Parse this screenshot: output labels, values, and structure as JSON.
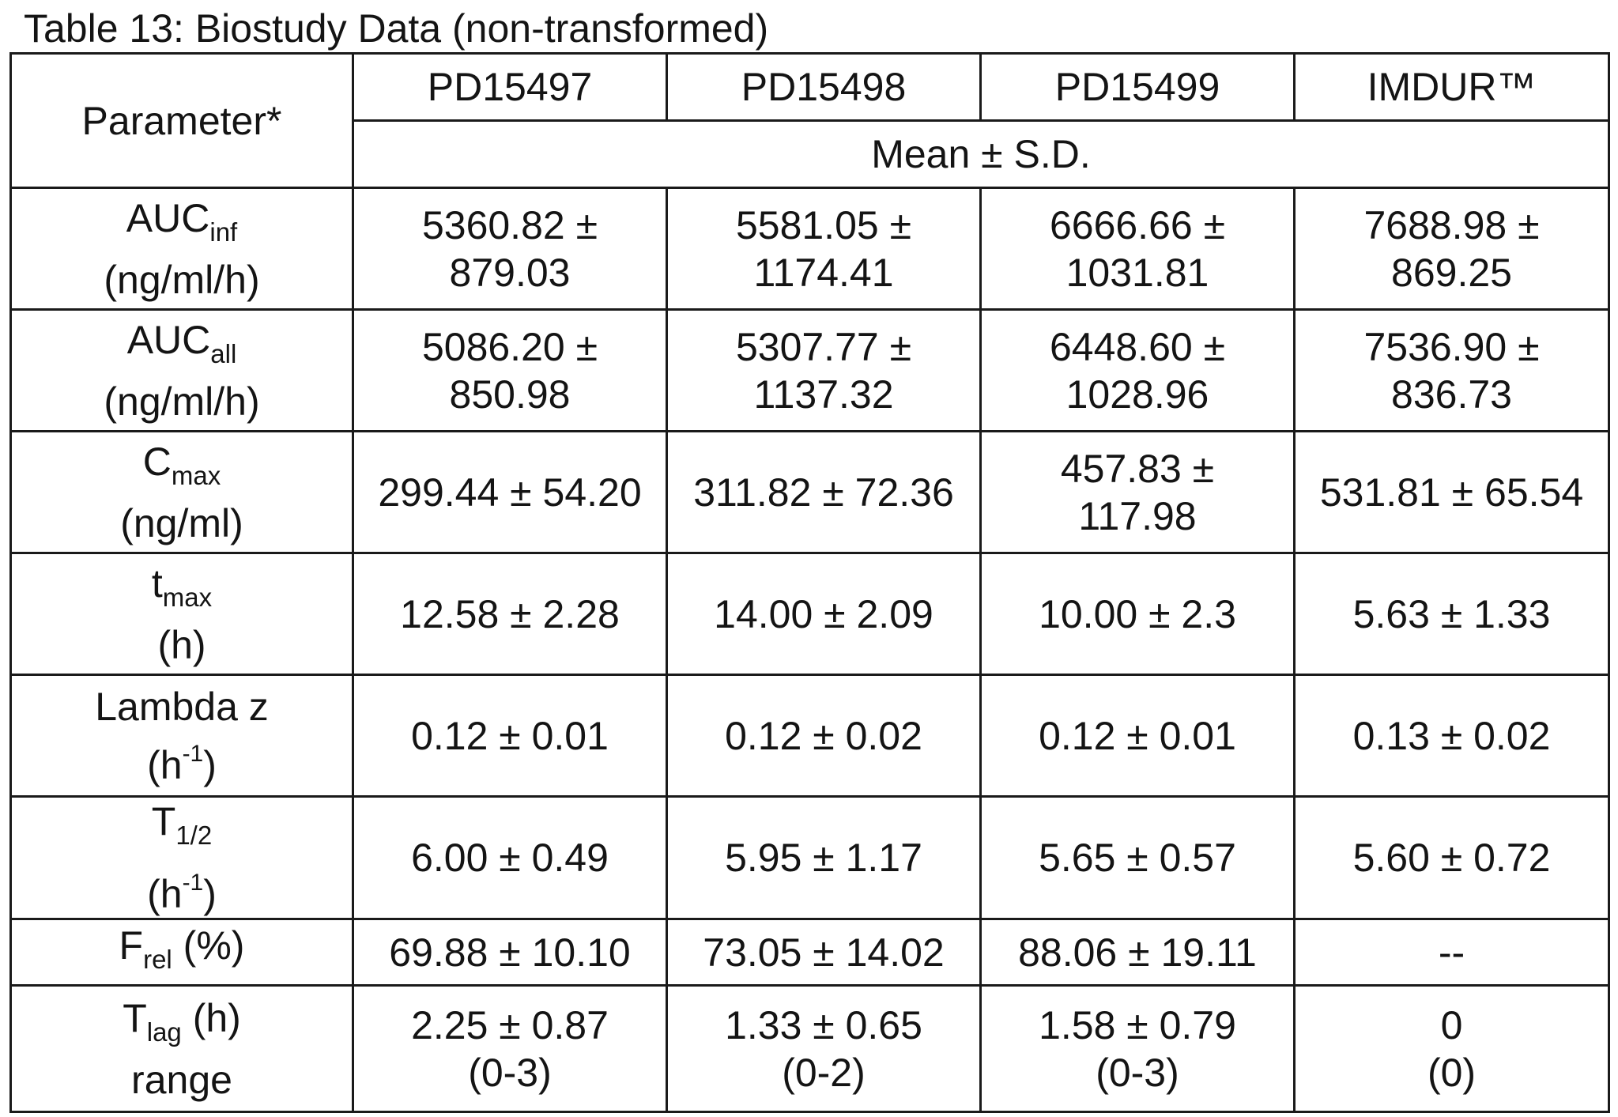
{
  "caption": "Table 13:  Biostudy Data (non-transformed)",
  "header": {
    "parameter": "Parameter*",
    "columns": [
      "PD15497",
      "PD15498",
      "PD15499",
      "IMDUR™"
    ],
    "stat": "Mean ± S.D."
  },
  "rows": [
    {
      "base": "AUC",
      "sub": "inf",
      "unit": "(ng/ml/h)",
      "values": [
        [
          "5360.82 ±",
          "879.03"
        ],
        [
          "5581.05 ±",
          "1174.41"
        ],
        [
          "6666.66 ±",
          "1031.81"
        ],
        [
          "7688.98 ±",
          "869.25"
        ]
      ]
    },
    {
      "base": "AUC",
      "sub": "all",
      "unit": "(ng/ml/h)",
      "values": [
        [
          "5086.20 ±",
          "850.98"
        ],
        [
          "5307.77 ±",
          "1137.32"
        ],
        [
          "6448.60 ±",
          "1028.96"
        ],
        [
          "7536.90 ±",
          "836.73"
        ]
      ]
    },
    {
      "base": "C",
      "sub": "max",
      "unit": "(ng/ml)",
      "values": [
        [
          "299.44 ± 54.20"
        ],
        [
          "311.82 ± 72.36"
        ],
        [
          "457.83 ±",
          "117.98"
        ],
        [
          "531.81 ± 65.54"
        ]
      ]
    },
    {
      "base": "t",
      "sub": "max",
      "unit": "(h)",
      "values": [
        [
          "12.58 ± 2.28"
        ],
        [
          "14.00 ± 2.09"
        ],
        [
          "10.00 ± 2.3"
        ],
        [
          "5.63 ± 1.33"
        ]
      ]
    },
    {
      "base": "Lambda z",
      "unit_pre": "(h",
      "unit_sup": "-1",
      "unit_post": ")",
      "values": [
        [
          "0.12 ± 0.01"
        ],
        [
          "0.12 ± 0.02"
        ],
        [
          "0.12 ± 0.01"
        ],
        [
          "0.13 ± 0.02"
        ]
      ]
    },
    {
      "base": "T",
      "sub": "1/2",
      "unit_pre": "(h",
      "unit_sup": "-1",
      "unit_post": ")",
      "values": [
        [
          "6.00 ± 0.49"
        ],
        [
          "5.95 ± 1.17"
        ],
        [
          "5.65 ± 0.57"
        ],
        [
          "5.60 ± 0.72"
        ]
      ]
    },
    {
      "base": "F",
      "sub": "rel",
      "after": " (%)",
      "values": [
        [
          "69.88 ± 10.10"
        ],
        [
          "73.05 ± 14.02"
        ],
        [
          "88.06 ± 19.11"
        ],
        [
          "--"
        ]
      ]
    },
    {
      "base": "T",
      "sub": "lag",
      "after": " (h)",
      "unit": "range",
      "values": [
        [
          "2.25 ± 0.87",
          "(0-3)"
        ],
        [
          "1.33 ± 0.65",
          "(0-2)"
        ],
        [
          "1.58 ± 0.79",
          "(0-3)"
        ],
        [
          "0",
          "(0)"
        ]
      ]
    }
  ]
}
